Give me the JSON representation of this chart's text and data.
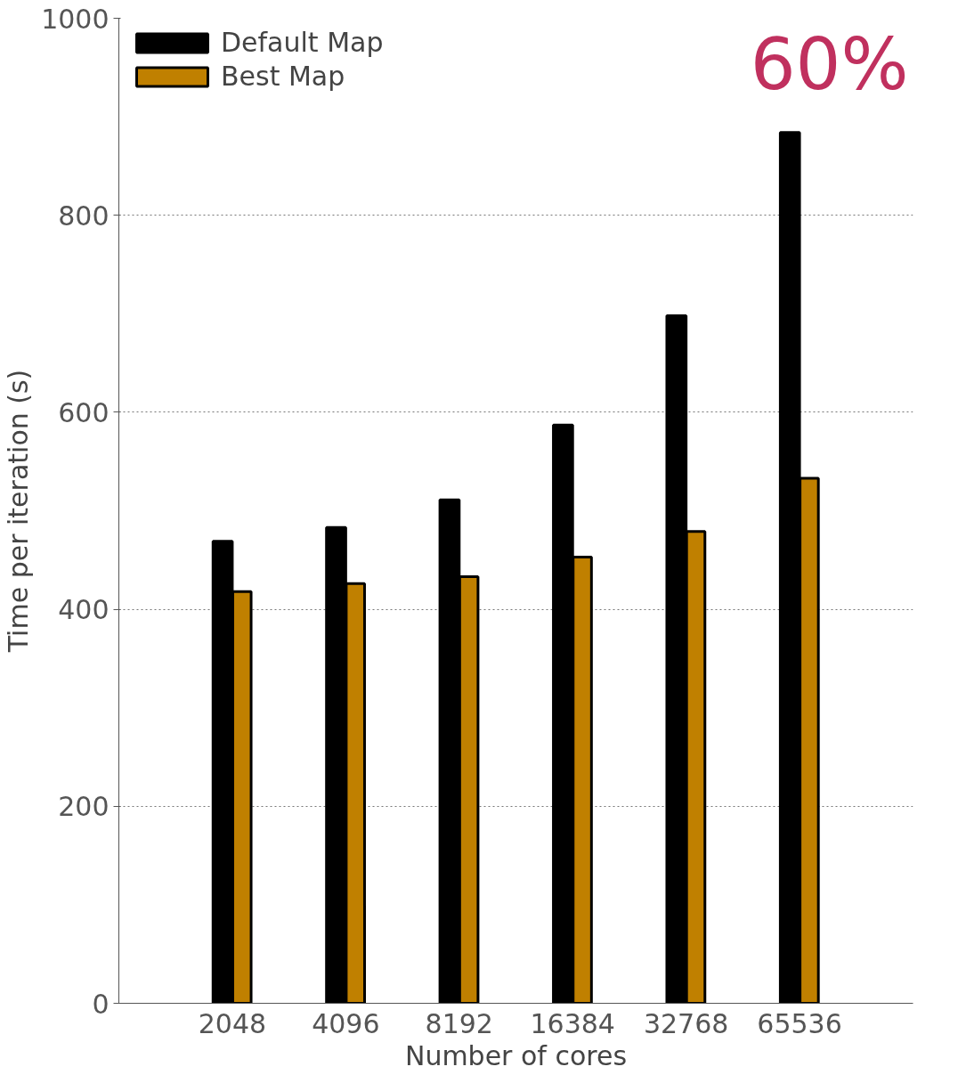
{
  "chart_data": {
    "type": "bar",
    "xlabel": "Number of cores",
    "ylabel": "Time per iteration (s)",
    "categories": [
      "2048",
      "4096",
      "8192",
      "16384",
      "32768",
      "65536"
    ],
    "series": [
      {
        "name": "Default Map",
        "color": "#000000",
        "values": [
          469,
          483,
          511,
          587,
          698,
          884
        ]
      },
      {
        "name": "Best Map",
        "color": "#c08000",
        "values": [
          418,
          426,
          433,
          453,
          479,
          533
        ]
      }
    ],
    "ylim": [
      0,
      1000
    ],
    "yticks": [
      0,
      200,
      400,
      600,
      800,
      1000
    ],
    "grid": "y",
    "legend": "top left",
    "annotations": [
      "60%"
    ]
  }
}
